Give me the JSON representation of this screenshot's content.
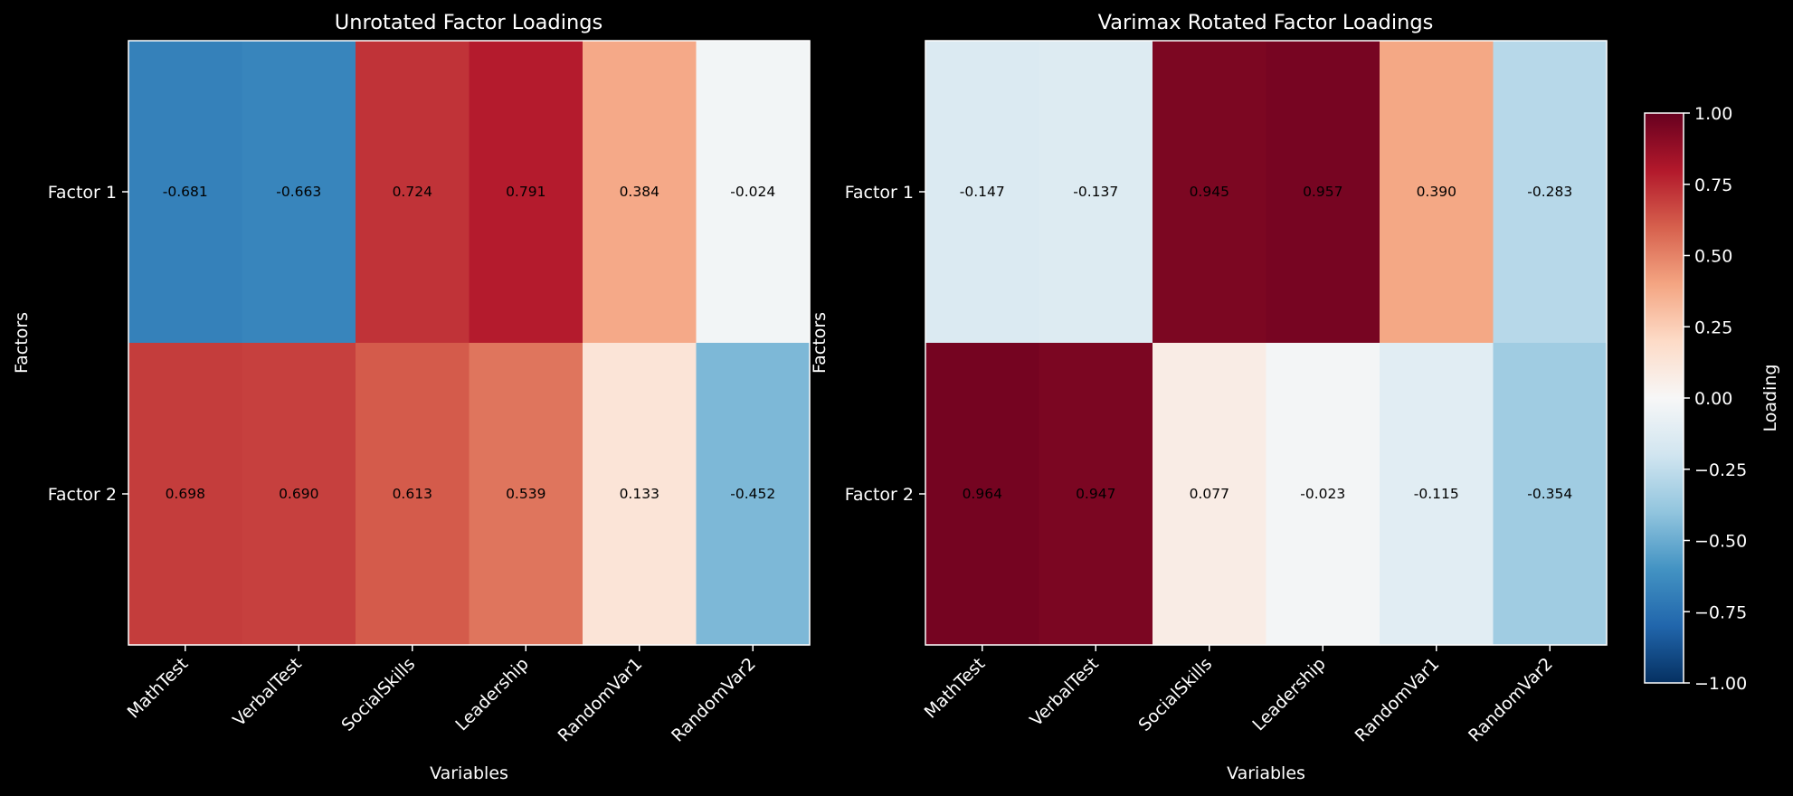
{
  "chart_data": {
    "type": "heatmap",
    "colorbar": {
      "label": "Loading",
      "range": [
        -1.0,
        1.0
      ],
      "ticks": [
        "1.00",
        "0.75",
        "0.50",
        "0.25",
        "0.00",
        "−0.25",
        "−0.50",
        "−0.75",
        "−1.00"
      ],
      "tick_values": [
        1.0,
        0.75,
        0.5,
        0.25,
        0.0,
        -0.25,
        -0.5,
        -0.75,
        -1.0
      ],
      "colormap": "RdBu_r"
    },
    "panels": [
      {
        "title": "Unrotated Factor Loadings",
        "xlabel": "Variables",
        "ylabel": "Factors",
        "rows": [
          "Factor 1",
          "Factor 2"
        ],
        "columns": [
          "MathTest",
          "VerbalTest",
          "SocialSkills",
          "Leadership",
          "RandomVar1",
          "RandomVar2"
        ],
        "values": [
          [
            -0.681,
            -0.663,
            0.724,
            0.791,
            0.384,
            -0.024
          ],
          [
            0.698,
            0.69,
            0.613,
            0.539,
            0.133,
            -0.452
          ]
        ],
        "labels": [
          [
            "-0.681",
            "-0.663",
            "0.724",
            "0.791",
            "0.384",
            "-0.024"
          ],
          [
            "0.698",
            "0.690",
            "0.613",
            "0.539",
            "0.133",
            "-0.452"
          ]
        ]
      },
      {
        "title": "Varimax Rotated Factor Loadings",
        "xlabel": "Variables",
        "ylabel": "Factors",
        "rows": [
          "Factor 1",
          "Factor 2"
        ],
        "columns": [
          "MathTest",
          "VerbalTest",
          "SocialSkills",
          "Leadership",
          "RandomVar1",
          "RandomVar2"
        ],
        "values": [
          [
            -0.147,
            -0.137,
            0.945,
            0.957,
            0.39,
            -0.283
          ],
          [
            0.964,
            0.947,
            0.077,
            -0.023,
            -0.115,
            -0.354
          ]
        ],
        "labels": [
          [
            "-0.147",
            "-0.137",
            "0.945",
            "0.957",
            "0.390",
            "-0.283"
          ],
          [
            "0.964",
            "0.947",
            "0.077",
            "-0.023",
            "-0.115",
            "-0.354"
          ]
        ]
      }
    ]
  }
}
